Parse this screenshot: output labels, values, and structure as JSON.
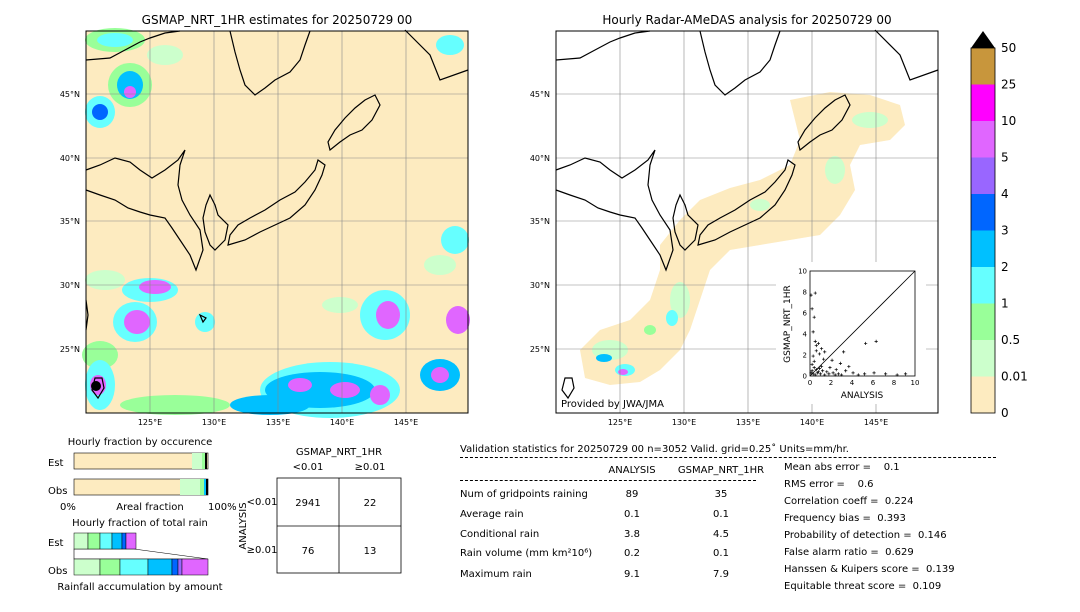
{
  "left_map": {
    "title": "GSMAP_NRT_1HR estimates for 20250729 00",
    "lat_labels": [
      "45°N",
      "40°N",
      "35°N",
      "30°N",
      "25°N"
    ],
    "lon_labels": [
      "125°E",
      "130°E",
      "135°E",
      "140°E",
      "145°E"
    ]
  },
  "right_map": {
    "title": "Hourly Radar-AMeDAS analysis for 20250729 00",
    "lat_labels": [
      "45°N",
      "40°N",
      "35°N",
      "30°N",
      "25°N"
    ],
    "lon_labels": [
      "125°E",
      "130°E",
      "135°E",
      "140°E",
      "145°E"
    ],
    "credit": "Provided by JWA/JMA"
  },
  "colorbar": {
    "labels": [
      "50",
      "25",
      "10",
      "5",
      "4",
      "3",
      "2",
      "1",
      "0.5",
      "0.01",
      "0"
    ],
    "colors": [
      "#c8963c",
      "#ff00ff",
      "#e066ff",
      "#9966ff",
      "#0066ff",
      "#00c0ff",
      "#66ffff",
      "#99ff99",
      "#ccffcc",
      "#fdebc0"
    ],
    "extend_color": "#000000"
  },
  "occurrence": {
    "title": "Hourly fraction by occurence",
    "rows": [
      "Est",
      "Obs"
    ],
    "xlabel_left": "0%",
    "xlabel_mid": "Areal fraction",
    "xlabel_right": "100%"
  },
  "total_rain": {
    "title": "Hourly fraction of total rain",
    "rows": [
      "Est",
      "Obs"
    ],
    "xlabel": "Rainfall accumulation by amount"
  },
  "contingency": {
    "col_title": "GSMAP_NRT_1HR",
    "col_lt": "<0.01",
    "col_ge": "≥0.01",
    "row_title": "ANALYSIS",
    "row_lt": "<0.01",
    "row_ge": "≥0.01",
    "cells": [
      "2941",
      "22",
      "76",
      "13"
    ]
  },
  "validation": {
    "header": "Validation statistics for 20250729 00  n=3052 Valid. grid=0.25˚ Units=mm/hr.",
    "col_analysis": "ANALYSIS",
    "col_gsmap": "GSMAP_NRT_1HR",
    "rows": [
      {
        "label": "Num of gridpoints raining",
        "analysis": "89",
        "gsmap": "35"
      },
      {
        "label": "Average rain",
        "analysis": "0.1",
        "gsmap": "0.1"
      },
      {
        "label": "Conditional rain",
        "analysis": "3.8",
        "gsmap": "4.5"
      },
      {
        "label": "Rain volume (mm km²10⁶)",
        "analysis": "0.2",
        "gsmap": "0.1"
      },
      {
        "label": "Maximum rain",
        "analysis": "9.1",
        "gsmap": "7.9"
      }
    ],
    "scores": [
      "Mean abs error =    0.1",
      "RMS error =    0.6",
      "Correlation coeff =  0.224",
      "Frequency bias =  0.393",
      "Probability of detection =  0.146",
      "False alarm ratio =  0.629",
      "Hanssen & Kuipers score =  0.139",
      "Equitable threat score =  0.109"
    ]
  },
  "chart_data": {
    "type": "scatter",
    "title": "",
    "xlabel": "ANALYSIS",
    "ylabel": "GSMAP_NRT_1HR",
    "xlim": [
      0,
      10
    ],
    "ylim": [
      0,
      10
    ],
    "xticks": [
      "0",
      "2",
      "4",
      "6",
      "8",
      "10"
    ],
    "yticks": [
      "0",
      "2",
      "4",
      "6",
      "8",
      "10"
    ],
    "points": [
      [
        0.1,
        7.7
      ],
      [
        0.5,
        7.9
      ],
      [
        0.2,
        6.4
      ],
      [
        0.4,
        5.6
      ],
      [
        0.3,
        4.2
      ],
      [
        0.5,
        3.3
      ],
      [
        0.6,
        2.9
      ],
      [
        0.8,
        3.1
      ],
      [
        1.1,
        2.6
      ],
      [
        0.9,
        2.1
      ],
      [
        1.4,
        2.3
      ],
      [
        0.3,
        1.9
      ],
      [
        1.3,
        1.6
      ],
      [
        2.1,
        1.5
      ],
      [
        2.9,
        1.2
      ],
      [
        3.7,
        0.9
      ],
      [
        6.3,
        3.3
      ],
      [
        5.3,
        3.1
      ],
      [
        3.2,
        2.3
      ],
      [
        0.2,
        1.1
      ],
      [
        0.4,
        0.8
      ],
      [
        0.6,
        0.6
      ],
      [
        0.9,
        0.7
      ],
      [
        1.2,
        0.5
      ],
      [
        1.6,
        0.4
      ],
      [
        2.2,
        0.3
      ],
      [
        2.7,
        0.2
      ],
      [
        3.4,
        0.5
      ],
      [
        4.1,
        0.3
      ],
      [
        5.2,
        0.2
      ],
      [
        6.1,
        0.3
      ],
      [
        7.2,
        0.2
      ],
      [
        8.3,
        0.1
      ],
      [
        9.1,
        0.2
      ],
      [
        0.1,
        0.3
      ],
      [
        0.3,
        0.2
      ],
      [
        0.5,
        0.1
      ],
      [
        0.7,
        0.3
      ],
      [
        1.0,
        0.2
      ],
      [
        1.4,
        0.1
      ],
      [
        1.8,
        0.2
      ],
      [
        2.4,
        0.1
      ],
      [
        0.2,
        0.5
      ],
      [
        0.8,
        0.4
      ],
      [
        1.1,
        0.9
      ],
      [
        1.9,
        0.8
      ],
      [
        2.5,
        0.6
      ],
      [
        0.4,
        1.4
      ],
      [
        0.6,
        2.4
      ],
      [
        3.0,
        0.1
      ],
      [
        4.6,
        0.1
      ]
    ]
  }
}
